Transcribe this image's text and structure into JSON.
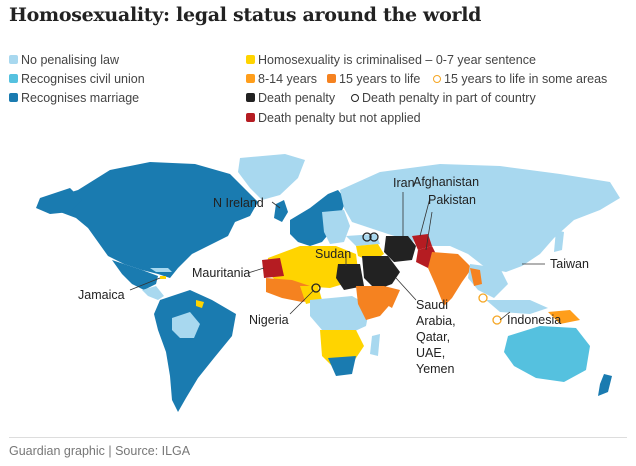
{
  "title": "Homosexuality: legal status around the world",
  "colors": {
    "no_penalising_law": "#a8d8ef",
    "civil_union": "#55c1df",
    "marriage": "#1a7bb0",
    "criminalised_0_7": "#ffd400",
    "criminalised_8_14": "#ff9e1b",
    "criminalised_15_life": "#f58220",
    "death_penalty": "#222222",
    "death_not_applied": "#b51c22"
  },
  "legend": {
    "no_penalising_law": "No penalising law",
    "civil_union": "Recognises civil union",
    "marriage": "Recognises marriage",
    "criminalised_0_7": "Homosexuality is criminalised – 0-7 year sentence",
    "criminalised_8_14": "8-14 years",
    "criminalised_15_life": "15 years to life",
    "criminalised_15_life_partial": "15 years to life in some areas",
    "death_penalty": "Death penalty",
    "death_penalty_partial": "Death penalty in part of country",
    "death_not_applied": "Death penalty but not applied"
  },
  "map_labels": {
    "iran": "Iran",
    "afghanistan": "Afghanistan",
    "pakistan": "Pakistan",
    "n_ireland": "N Ireland",
    "sudan": "Sudan",
    "taiwan": "Taiwan",
    "mauritania": "Mauritania",
    "jamaica": "Jamaica",
    "nigeria": "Nigeria",
    "indonesia": "Indonesia",
    "saudi": "Saudi",
    "arabia": "Arabia,",
    "qatar": "Qatar,",
    "uae": "UAE,",
    "yemen": "Yemen"
  },
  "footer": "Guardian graphic | Source: ILGA"
}
